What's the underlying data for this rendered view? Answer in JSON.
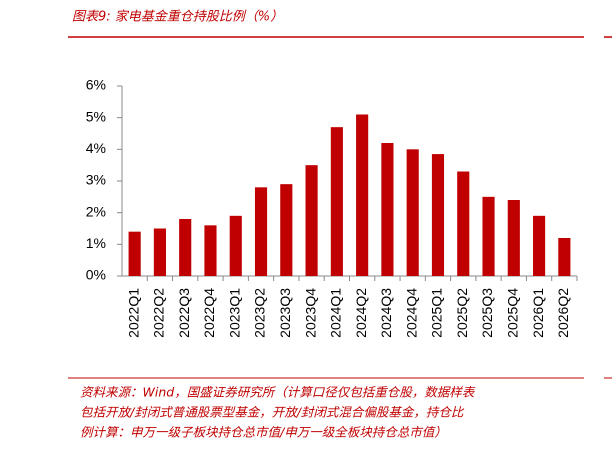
{
  "chart_data": {
    "type": "bar",
    "title": "图表9:  家电基金重仓持股比例（%）",
    "categories": [
      "2022Q1",
      "2022Q2",
      "2022Q3",
      "2022Q4",
      "2023Q1",
      "2023Q2",
      "2023Q3",
      "2023Q4",
      "2024Q1",
      "2024Q2",
      "2024Q3",
      "2024Q4",
      "2025Q1",
      "2025Q2",
      "2025Q3",
      "2025Q4",
      "2026Q1",
      "2026Q2"
    ],
    "values": [
      1.4,
      1.5,
      1.8,
      1.6,
      1.9,
      2.8,
      2.9,
      3.5,
      4.7,
      5.1,
      4.2,
      4.0,
      3.85,
      3.3,
      2.5,
      2.4,
      1.9,
      1.2
    ],
    "color": "#c00000",
    "ylim": [
      0,
      6
    ],
    "yticks": [
      {
        "value": 0,
        "label": "0%"
      },
      {
        "value": 1,
        "label": "1%"
      },
      {
        "value": 2,
        "label": "2%"
      },
      {
        "value": 3,
        "label": "3%"
      },
      {
        "value": 4,
        "label": "4%"
      },
      {
        "value": 5,
        "label": "5%"
      },
      {
        "value": 6,
        "label": "6%"
      }
    ],
    "grid": false,
    "source_lines": [
      "资料来源：Wind，国盛证券研究所（计算口径仅包括重仓股，数据样表",
      "包括开放/封闭式普通股票型基金，开放/封闭式混合偏股基金，持仓比",
      "例计算：申万一级子板块持仓总市值/申万一级全板块持仓总市值）"
    ]
  }
}
